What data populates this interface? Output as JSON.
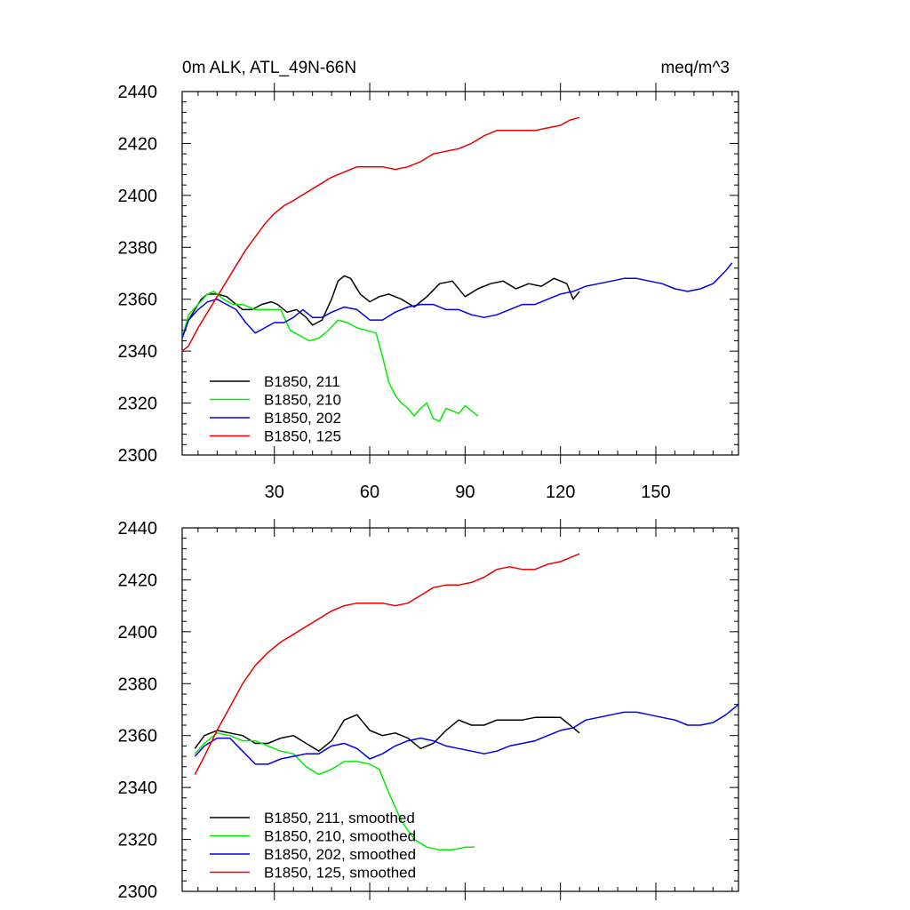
{
  "header": {
    "left_title": "0m ALK, ATL_49N-66N",
    "right_title": "meq/m^3"
  },
  "chart_data": [
    {
      "type": "line",
      "name": "top-panel",
      "xlim": [
        1,
        176
      ],
      "ylim": [
        2300,
        2440
      ],
      "x_major_ticks": [
        30,
        60,
        90,
        120,
        150
      ],
      "x_tick_labels": [
        "30",
        "60",
        "90",
        "120",
        "150"
      ],
      "y_major_ticks": [
        2300,
        2320,
        2340,
        2360,
        2380,
        2400,
        2420,
        2440
      ],
      "y_tick_labels": [
        "2300",
        "2320",
        "2340",
        "2360",
        "2380",
        "2400",
        "2420",
        "2440"
      ],
      "legend_position": "bottom-left",
      "series": [
        {
          "name": "B1850, 211",
          "color": "#000000",
          "x": [
            1,
            3,
            5,
            7,
            9,
            12,
            15,
            18,
            20,
            23,
            26,
            29,
            31,
            34,
            37,
            40,
            42,
            45,
            48,
            50,
            52,
            54,
            57,
            60,
            63,
            66,
            70,
            74,
            78,
            82,
            86,
            90,
            94,
            98,
            102,
            106,
            110,
            114,
            118,
            122,
            124,
            126
          ],
          "y": [
            2345,
            2352,
            2356,
            2360,
            2362,
            2362,
            2361,
            2358,
            2356,
            2356,
            2358,
            2359,
            2358,
            2355,
            2356,
            2353,
            2350,
            2352,
            2360,
            2367,
            2369,
            2368,
            2362,
            2359,
            2361,
            2362,
            2360,
            2357,
            2361,
            2366,
            2367,
            2361,
            2364,
            2366,
            2367,
            2364,
            2366,
            2365,
            2368,
            2366,
            2360,
            2363
          ]
        },
        {
          "name": "B1850, 210",
          "color": "#00ee00",
          "x": [
            1,
            3,
            6,
            9,
            11,
            14,
            17,
            20,
            24,
            28,
            32,
            35,
            38,
            41,
            44,
            47,
            50,
            53,
            56,
            59,
            62,
            64,
            66,
            68,
            70,
            72,
            74,
            76,
            78,
            80,
            82,
            84,
            86,
            88,
            90,
            92,
            94
          ],
          "y": [
            2345,
            2354,
            2358,
            2362,
            2363,
            2360,
            2358,
            2358,
            2356,
            2356,
            2356,
            2348,
            2346,
            2344,
            2345,
            2348,
            2352,
            2351,
            2349,
            2348,
            2347,
            2338,
            2328,
            2323,
            2320,
            2318,
            2315,
            2318,
            2320,
            2314,
            2313,
            2318,
            2317,
            2316,
            2319,
            2317,
            2315
          ]
        },
        {
          "name": "B1850, 202",
          "color": "#0000ee",
          "x": [
            1,
            3,
            6,
            9,
            12,
            15,
            18,
            21,
            24,
            27,
            30,
            33,
            36,
            39,
            42,
            45,
            48,
            52,
            56,
            60,
            64,
            68,
            72,
            76,
            80,
            84,
            88,
            92,
            96,
            100,
            104,
            108,
            112,
            116,
            120,
            124,
            128,
            132,
            136,
            140,
            144,
            148,
            152,
            156,
            160,
            164,
            168,
            172,
            174
          ],
          "y": [
            2345,
            2352,
            2356,
            2359,
            2360,
            2358,
            2356,
            2351,
            2347,
            2349,
            2351,
            2351,
            2353,
            2356,
            2353,
            2353,
            2355,
            2357,
            2356,
            2352,
            2352,
            2355,
            2357,
            2358,
            2358,
            2356,
            2356,
            2354,
            2353,
            2354,
            2356,
            2358,
            2358,
            2360,
            2362,
            2363,
            2365,
            2366,
            2367,
            2368,
            2368,
            2367,
            2366,
            2364,
            2363,
            2364,
            2366,
            2371,
            2374
          ]
        },
        {
          "name": "B1850, 125",
          "color": "#ee0000",
          "x": [
            1,
            3,
            6,
            9,
            12,
            15,
            18,
            21,
            24,
            27,
            30,
            33,
            36,
            40,
            44,
            48,
            52,
            56,
            60,
            64,
            68,
            72,
            76,
            80,
            84,
            88,
            92,
            96,
            100,
            104,
            108,
            112,
            116,
            120,
            123,
            126
          ],
          "y": [
            2340,
            2342,
            2349,
            2355,
            2361,
            2367,
            2373,
            2379,
            2384,
            2389,
            2393,
            2396,
            2398,
            2401,
            2404,
            2407,
            2409,
            2411,
            2411,
            2411,
            2410,
            2411,
            2413,
            2416,
            2417,
            2418,
            2420,
            2423,
            2425,
            2425,
            2425,
            2425,
            2426,
            2427,
            2429,
            2430
          ]
        }
      ]
    },
    {
      "type": "line",
      "name": "bottom-panel",
      "xlim": [
        1,
        176
      ],
      "ylim": [
        2300,
        2440
      ],
      "x_major_ticks": [
        30,
        60,
        90,
        120,
        150
      ],
      "y_major_ticks": [
        2300,
        2320,
        2340,
        2360,
        2380,
        2400,
        2420,
        2440
      ],
      "y_tick_labels": [
        "2300",
        "2320",
        "2340",
        "2360",
        "2380",
        "2400",
        "2420",
        "2440"
      ],
      "legend_position": "bottom-left",
      "series": [
        {
          "name": "B1850, 211, smoothed",
          "color": "#000000",
          "x": [
            5,
            8,
            12,
            16,
            20,
            24,
            28,
            32,
            36,
            40,
            44,
            48,
            52,
            56,
            60,
            64,
            68,
            72,
            76,
            80,
            84,
            88,
            92,
            96,
            100,
            104,
            108,
            112,
            116,
            120,
            123,
            126
          ],
          "y": [
            2355,
            2360,
            2362,
            2361,
            2360,
            2357,
            2357,
            2359,
            2360,
            2357,
            2354,
            2358,
            2366,
            2368,
            2362,
            2360,
            2361,
            2359,
            2355,
            2357,
            2362,
            2366,
            2364,
            2364,
            2366,
            2366,
            2366,
            2367,
            2367,
            2367,
            2364,
            2361
          ]
        },
        {
          "name": "B1850, 210, smoothed",
          "color": "#00ee00",
          "x": [
            5,
            8,
            12,
            16,
            20,
            24,
            28,
            32,
            36,
            40,
            44,
            48,
            52,
            56,
            60,
            63,
            66,
            70,
            74,
            78,
            82,
            86,
            90,
            93
          ],
          "y": [
            2353,
            2357,
            2361,
            2360,
            2358,
            2358,
            2356,
            2354,
            2353,
            2348,
            2345,
            2347,
            2350,
            2350,
            2349,
            2347,
            2338,
            2327,
            2320,
            2317,
            2316,
            2316,
            2317,
            2317
          ]
        },
        {
          "name": "B1850, 202, smoothed",
          "color": "#0000ee",
          "x": [
            5,
            8,
            12,
            16,
            20,
            24,
            28,
            32,
            36,
            40,
            44,
            48,
            52,
            56,
            60,
            64,
            68,
            72,
            76,
            80,
            84,
            88,
            92,
            96,
            100,
            104,
            108,
            112,
            116,
            120,
            124,
            128,
            132,
            136,
            140,
            144,
            148,
            152,
            156,
            160,
            164,
            168,
            172,
            176
          ],
          "y": [
            2352,
            2356,
            2359,
            2359,
            2354,
            2349,
            2349,
            2351,
            2352,
            2353,
            2353,
            2356,
            2357,
            2355,
            2351,
            2353,
            2356,
            2358,
            2359,
            2358,
            2356,
            2355,
            2354,
            2353,
            2354,
            2356,
            2357,
            2358,
            2360,
            2362,
            2363,
            2366,
            2367,
            2368,
            2369,
            2369,
            2368,
            2367,
            2366,
            2364,
            2364,
            2365,
            2368,
            2372
          ]
        },
        {
          "name": "B1850, 125, smoothed",
          "color": "#ee0000",
          "x": [
            5,
            8,
            12,
            16,
            20,
            24,
            28,
            32,
            36,
            40,
            44,
            48,
            52,
            56,
            60,
            64,
            68,
            72,
            76,
            80,
            84,
            88,
            92,
            96,
            100,
            104,
            108,
            112,
            116,
            120,
            124,
            126
          ],
          "y": [
            2345,
            2352,
            2362,
            2371,
            2380,
            2387,
            2392,
            2396,
            2399,
            2402,
            2405,
            2408,
            2410,
            2411,
            2411,
            2411,
            2410,
            2411,
            2414,
            2417,
            2418,
            2418,
            2419,
            2421,
            2424,
            2425,
            2424,
            2424,
            2426,
            2427,
            2429,
            2430
          ]
        }
      ]
    }
  ]
}
